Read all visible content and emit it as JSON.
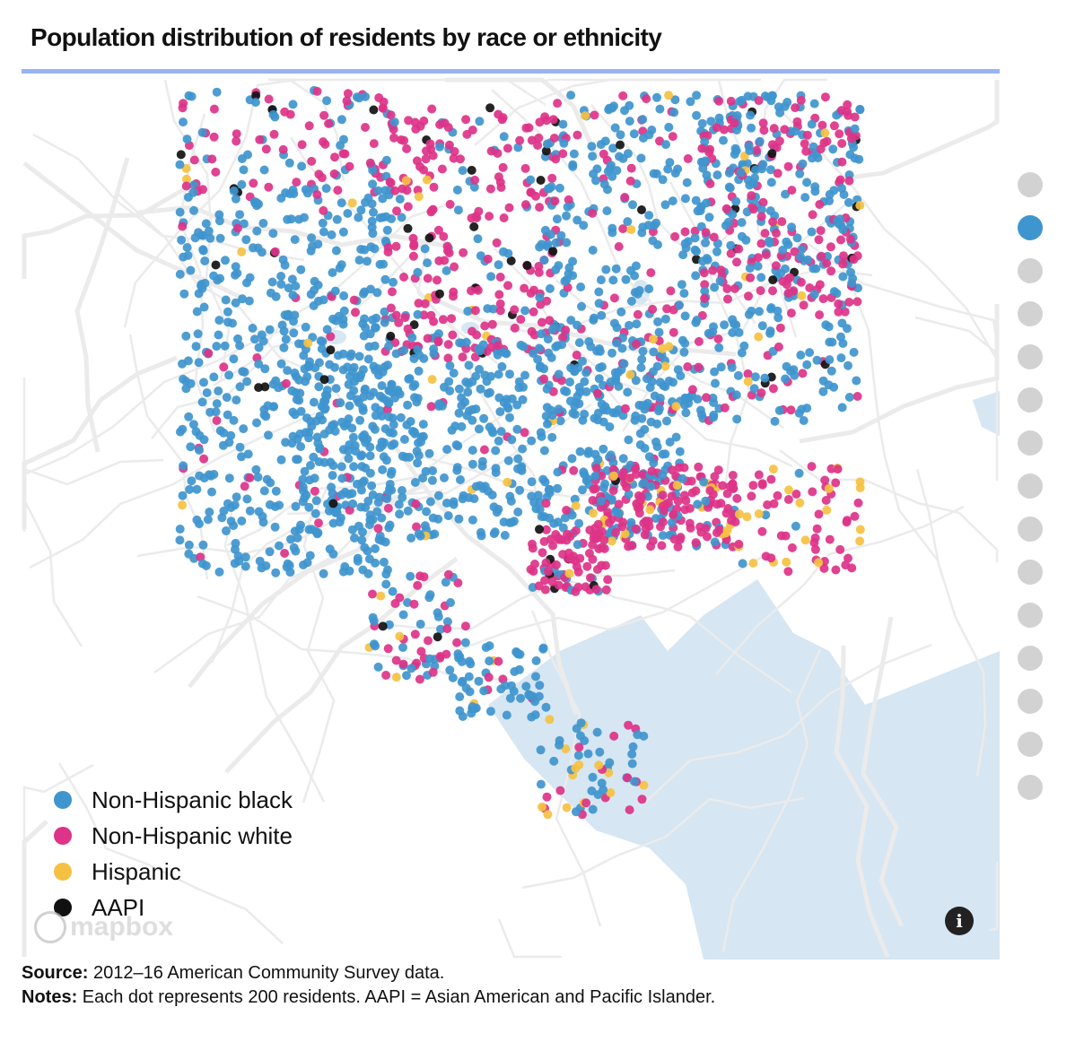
{
  "title": "Population distribution of residents by race or ethnicity",
  "legend": [
    {
      "label": "Non-Hispanic black",
      "color": "#3f95ce"
    },
    {
      "label": "Non-Hispanic white",
      "color": "#dd3388"
    },
    {
      "label": "Hispanic",
      "color": "#f5c142"
    },
    {
      "label": "AAPI",
      "color": "#111111"
    }
  ],
  "map": {
    "attribution_logo": "mapbox",
    "info_icon": "i",
    "water_color": "#d6e6f2",
    "road_color": "#ebebeb"
  },
  "navigation": {
    "step_count": 15,
    "active_step": 2
  },
  "footer": {
    "source_label": "Source:",
    "source_text": " 2012–16 American Community Survey data.",
    "notes_label": "Notes:",
    "notes_text": " Each dot represents 200 residents. AAPI = Asian American and Pacific Islander."
  }
}
